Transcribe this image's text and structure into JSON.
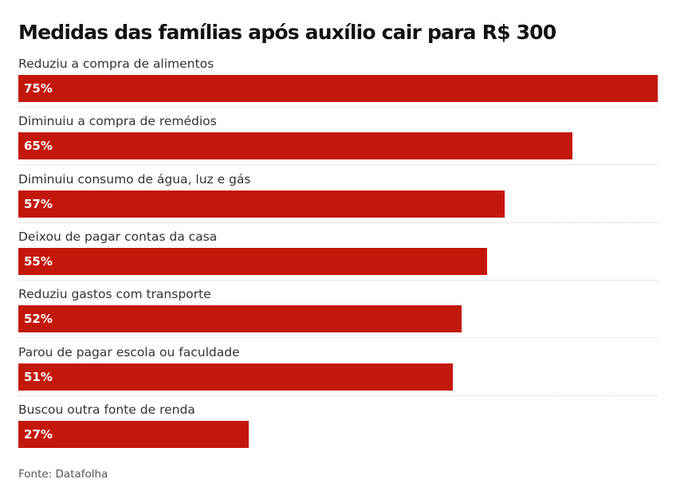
{
  "chart_data": {
    "type": "bar",
    "orientation": "horizontal",
    "title": "Medidas das famílias após auxílio cair para R$ 300",
    "categories": [
      "Reduziu a compra de alimentos",
      "Diminuiu a compra de remédios",
      "Diminuiu consumo de água, luz e gás",
      "Deixou de pagar contas da casa",
      "Reduziu gastos com transporte",
      "Parou de pagar escola ou faculdade",
      "Buscou outra fonte de renda"
    ],
    "values": [
      75,
      65,
      57,
      55,
      52,
      51,
      27
    ],
    "value_labels": [
      "75%",
      "65%",
      "57%",
      "55%",
      "52%",
      "51%",
      "27%"
    ],
    "unit": "%",
    "xlim": [
      0,
      75
    ],
    "grid": false,
    "legend": "none",
    "bar_color": "#c4170c",
    "source": "Fonte: Datafolha"
  }
}
